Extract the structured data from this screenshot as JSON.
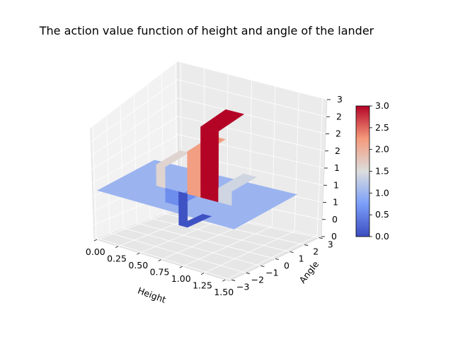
{
  "chart_data": {
    "type": "surface3d",
    "title": "The action value function of height and angle of the lander",
    "xlabel": "Height",
    "ylabel": "Angle",
    "zlabel": "",
    "x_ticks": [
      "0.00",
      "0.25",
      "0.50",
      "0.75",
      "1.00",
      "1.25",
      "1.50"
    ],
    "y_ticks": [
      "−3",
      "−2",
      "−1",
      "0",
      "1",
      "2",
      "3"
    ],
    "z_ticks": [
      "0",
      "0",
      "1",
      "1",
      "1",
      "2",
      "2",
      "2",
      "3"
    ],
    "xlim": [
      0,
      1.5
    ],
    "ylim": [
      -3.14,
      3.14
    ],
    "zlim": [
      0,
      3.0
    ],
    "colormap": "coolwarm",
    "colorbar": {
      "ticks": [
        "0.0",
        "0.5",
        "1.0",
        "1.5",
        "2.0",
        "2.5",
        "3.0"
      ],
      "min": 0.0,
      "max": 3.0
    },
    "surface": {
      "baseline_value": 1.0,
      "description_levels": [
        {
          "height_range": [
            0.0,
            0.3
          ],
          "value": 1.0
        },
        {
          "height_range": [
            0.35,
            0.45
          ],
          "value": 1.6
        },
        {
          "height_range": [
            0.45,
            0.6
          ],
          "value": 0.6
        },
        {
          "height_range": [
            0.6,
            0.7
          ],
          "value": 0.05
        },
        {
          "height_range": [
            0.7,
            0.85
          ],
          "value": 2.2
        },
        {
          "height_range": [
            0.85,
            1.05
          ],
          "value": 3.0
        },
        {
          "height_range": [
            1.05,
            1.2
          ],
          "value": 1.4
        },
        {
          "height_range": [
            1.2,
            1.5
          ],
          "value": 1.0
        }
      ]
    }
  }
}
